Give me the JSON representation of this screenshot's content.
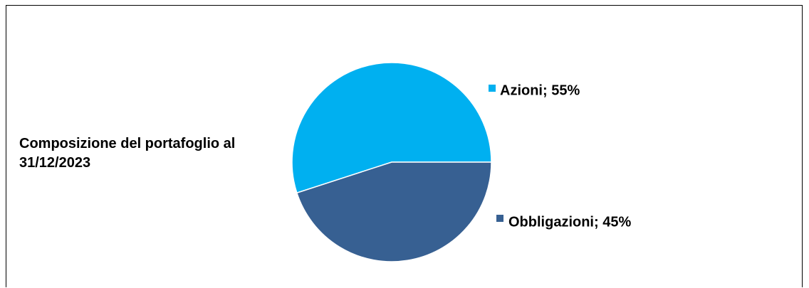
{
  "chart_data": {
    "type": "pie",
    "title": "Composizione del portafoglio al 31/12/2023",
    "categories": [
      "Azioni",
      "Obbligazioni"
    ],
    "values": [
      55,
      45
    ],
    "value_labels": [
      "Azioni; 55%",
      "Obbligazioni; 45%"
    ],
    "colors": [
      "#00b0f0",
      "#376092"
    ]
  }
}
